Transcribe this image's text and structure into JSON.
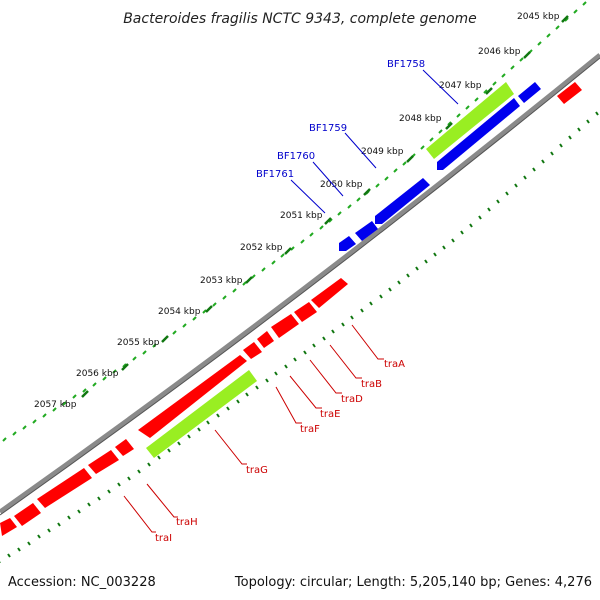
{
  "title": "Bacteroides fragilis NCTC 9343, complete genome",
  "footer": {
    "accession": "Accession: NC_003228",
    "stats": "Topology: circular; Length: 5,205,140 bp; Genes: 4,276"
  },
  "scale_ticks": [
    {
      "kbp": 2045,
      "label": "2045 kbp"
    },
    {
      "kbp": 2046,
      "label": "2046 kbp"
    },
    {
      "kbp": 2047,
      "label": "2047 kbp"
    },
    {
      "kbp": 2048,
      "label": "2048 kbp"
    },
    {
      "kbp": 2049,
      "label": "2049 kbp"
    },
    {
      "kbp": 2050,
      "label": "2050 kbp"
    },
    {
      "kbp": 2051,
      "label": "2051 kbp"
    },
    {
      "kbp": 2052,
      "label": "2052 kbp"
    },
    {
      "kbp": 2053,
      "label": "2053 kbp"
    },
    {
      "kbp": 2054,
      "label": "2054 kbp"
    },
    {
      "kbp": 2055,
      "label": "2055 kbp"
    },
    {
      "kbp": 2056,
      "label": "2056 kbp"
    },
    {
      "kbp": 2057,
      "label": "2057 kbp"
    }
  ],
  "colors": {
    "backbone": "#8a8a8a",
    "forward_cds": "#ff0000",
    "reverse_cds": "#0000ee",
    "highlight": "#99ee22",
    "tick_outer": "#22aa22",
    "tick_inner": "#117711",
    "label_forward": "#cc0000",
    "label_reverse": "#0000cc"
  },
  "genes": [
    {
      "label": "BF1758",
      "strand": "reverse"
    },
    {
      "label": "BF1759",
      "strand": "reverse"
    },
    {
      "label": "BF1760",
      "strand": "reverse"
    },
    {
      "label": "BF1761",
      "strand": "reverse"
    },
    {
      "label": "traA",
      "strand": "forward"
    },
    {
      "label": "traB",
      "strand": "forward"
    },
    {
      "label": "traD",
      "strand": "forward"
    },
    {
      "label": "traE",
      "strand": "forward"
    },
    {
      "label": "traF",
      "strand": "forward"
    },
    {
      "label": "traG",
      "strand": "forward"
    },
    {
      "label": "traH",
      "strand": "forward"
    },
    {
      "label": "traI",
      "strand": "forward"
    }
  ]
}
